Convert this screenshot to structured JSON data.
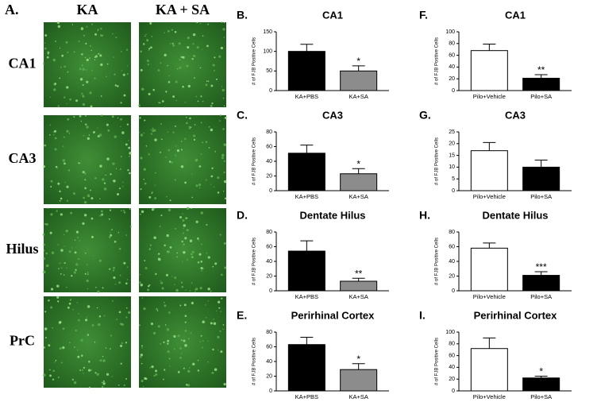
{
  "figure": {
    "panel_label": "A.",
    "columns": [
      "KA",
      "KA + SA"
    ],
    "rows": [
      "CA1",
      "CA3",
      "Hilus",
      "PrC"
    ]
  },
  "chart_data": [
    {
      "type": "bar",
      "panel": "B.",
      "title": "CA1",
      "y_label": "# of FJB Positive Cells",
      "categories": [
        "KA+PBS",
        "KA+SA"
      ],
      "values": [
        100,
        50
      ],
      "errors": [
        18,
        13
      ],
      "colors": [
        "#000000",
        "#8c8c8c"
      ],
      "significance": [
        null,
        "*"
      ],
      "ylim": [
        0,
        150
      ],
      "yticks": [
        0,
        50,
        100,
        150
      ]
    },
    {
      "type": "bar",
      "panel": "C.",
      "title": "CA3",
      "y_label": "# of FJB Positive Cells",
      "categories": [
        "KA+PBS",
        "KA+SA"
      ],
      "values": [
        51,
        23
      ],
      "errors": [
        11,
        7
      ],
      "colors": [
        "#000000",
        "#8c8c8c"
      ],
      "significance": [
        null,
        "*"
      ],
      "ylim": [
        0,
        80
      ],
      "yticks": [
        0,
        20,
        40,
        60,
        80
      ]
    },
    {
      "type": "bar",
      "panel": "D.",
      "title": "Dentate Hilus",
      "y_label": "# of FJB Positive Cells",
      "categories": [
        "KA+PBS",
        "KA+SA"
      ],
      "values": [
        54,
        13
      ],
      "errors": [
        14,
        4
      ],
      "colors": [
        "#000000",
        "#8c8c8c"
      ],
      "significance": [
        null,
        "**"
      ],
      "ylim": [
        0,
        80
      ],
      "yticks": [
        0,
        20,
        40,
        60,
        80
      ]
    },
    {
      "type": "bar",
      "panel": "E.",
      "title": "Perirhinal Cortex",
      "y_label": "# of FJB Positive Cells",
      "categories": [
        "KA+PBS",
        "KA+SA"
      ],
      "values": [
        63,
        29
      ],
      "errors": [
        10,
        8
      ],
      "colors": [
        "#000000",
        "#8c8c8c"
      ],
      "significance": [
        null,
        "*"
      ],
      "ylim": [
        0,
        80
      ],
      "yticks": [
        0,
        20,
        40,
        60,
        80
      ]
    },
    {
      "type": "bar",
      "panel": "F.",
      "title": "CA1",
      "y_label": "# of FJB Positive Cells",
      "categories": [
        "Pilo+Vehicle",
        "Pilo+SA"
      ],
      "values": [
        68,
        21
      ],
      "errors": [
        11,
        6
      ],
      "colors": [
        "#ffffff",
        "#000000"
      ],
      "significance": [
        null,
        "**"
      ],
      "ylim": [
        0,
        100
      ],
      "yticks": [
        0,
        20,
        40,
        60,
        80,
        100
      ]
    },
    {
      "type": "bar",
      "panel": "G.",
      "title": "CA3",
      "y_label": "# of FJB Positive Cells",
      "categories": [
        "Pilo+Vehicle",
        "Pilo+SA"
      ],
      "values": [
        17,
        10
      ],
      "errors": [
        3.5,
        3
      ],
      "colors": [
        "#ffffff",
        "#000000"
      ],
      "ylim": [
        0,
        25
      ],
      "yticks": [
        0,
        5,
        10,
        15,
        20,
        25
      ]
    },
    {
      "type": "bar",
      "panel": "H.",
      "title": "Dentate Hilus",
      "y_label": "# of FJB Positive Cells",
      "categories": [
        "Pilo+Vehicle",
        "Pilo+SA"
      ],
      "values": [
        58,
        21
      ],
      "errors": [
        7,
        5
      ],
      "colors": [
        "#ffffff",
        "#000000"
      ],
      "significance": [
        null,
        "***"
      ],
      "ylim": [
        0,
        80
      ],
      "yticks": [
        0,
        20,
        40,
        60,
        80
      ]
    },
    {
      "type": "bar",
      "panel": "I.",
      "title": "Perirhinal Cortex",
      "y_label": "# of FJB Positive Cells",
      "categories": [
        "Pilo+Vehicle",
        "Pilo+SA"
      ],
      "values": [
        72,
        22
      ],
      "errors": [
        18,
        3
      ],
      "colors": [
        "#ffffff",
        "#000000"
      ],
      "significance": [
        null,
        "*"
      ],
      "ylim": [
        0,
        100
      ],
      "yticks": [
        0,
        20,
        40,
        60,
        80,
        100
      ]
    }
  ]
}
